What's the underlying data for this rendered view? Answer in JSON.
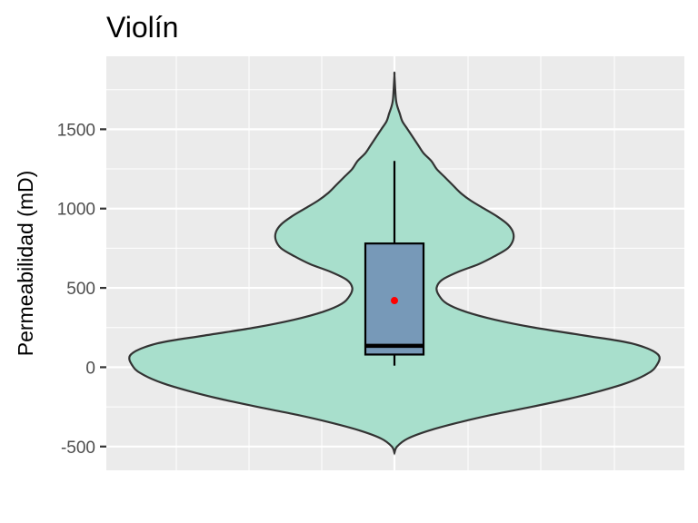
{
  "chart_data": {
    "type": "violin",
    "title": "Violín",
    "xlabel": "",
    "ylabel": "Permeabilidad (mD)",
    "ylim": [
      -650,
      1960
    ],
    "y_ticks": [
      -500,
      0,
      500,
      1000,
      1500
    ],
    "grid": true,
    "legend": "none",
    "violin": {
      "range": [
        -540,
        1840
      ],
      "density_profile": [
        [
          -540,
          0.0
        ],
        [
          -500,
          0.01
        ],
        [
          -450,
          0.05
        ],
        [
          -400,
          0.13
        ],
        [
          -350,
          0.24
        ],
        [
          -300,
          0.37
        ],
        [
          -250,
          0.52
        ],
        [
          -200,
          0.66
        ],
        [
          -150,
          0.78
        ],
        [
          -100,
          0.88
        ],
        [
          -50,
          0.95
        ],
        [
          0,
          0.99
        ],
        [
          80,
          1.0
        ],
        [
          150,
          0.9
        ],
        [
          200,
          0.72
        ],
        [
          250,
          0.53
        ],
        [
          300,
          0.38
        ],
        [
          350,
          0.27
        ],
        [
          400,
          0.2
        ],
        [
          450,
          0.17
        ],
        [
          500,
          0.16
        ],
        [
          550,
          0.18
        ],
        [
          600,
          0.24
        ],
        [
          650,
          0.32
        ],
        [
          700,
          0.38
        ],
        [
          750,
          0.43
        ],
        [
          800,
          0.45
        ],
        [
          850,
          0.45
        ],
        [
          900,
          0.43
        ],
        [
          950,
          0.39
        ],
        [
          1000,
          0.34
        ],
        [
          1050,
          0.29
        ],
        [
          1100,
          0.25
        ],
        [
          1150,
          0.22
        ],
        [
          1200,
          0.19
        ],
        [
          1250,
          0.16
        ],
        [
          1300,
          0.14
        ],
        [
          1350,
          0.11
        ],
        [
          1400,
          0.09
        ],
        [
          1450,
          0.07
        ],
        [
          1500,
          0.05
        ],
        [
          1550,
          0.03
        ],
        [
          1600,
          0.02
        ],
        [
          1650,
          0.01
        ],
        [
          1700,
          0.005
        ],
        [
          1840,
          0.0
        ]
      ],
      "fill": "#a8dfcc",
      "stroke": "#333333"
    },
    "box": {
      "min": 10,
      "q1": 80,
      "median": 135,
      "q3": 780,
      "max": 1300,
      "fill": "#7799b8",
      "stroke": "#000000"
    },
    "mean": {
      "value": 420,
      "color": "#ff0000"
    },
    "panel_background": "#ebebeb",
    "grid_color": "#ffffff"
  }
}
